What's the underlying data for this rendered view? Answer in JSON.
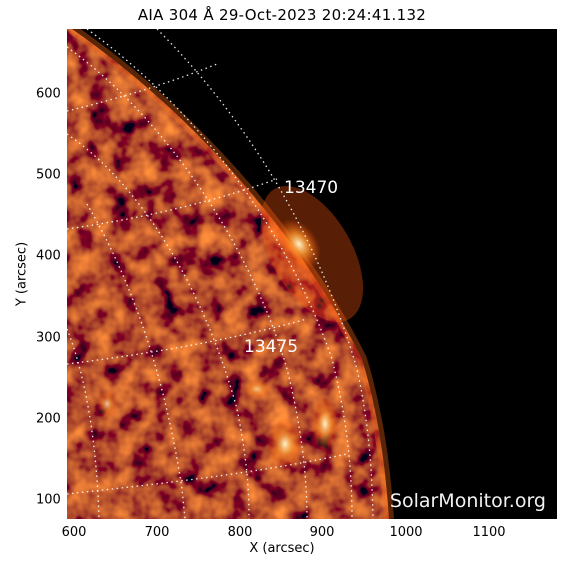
{
  "title": "AIA 304 Å 29-Oct-2023 20:24:41.132",
  "axes": {
    "xlabel": "X (arcsec)",
    "ylabel": "Y (arcsec)",
    "xticks": [
      "600",
      "700",
      "800",
      "900",
      "1000",
      "1100"
    ],
    "yticks": [
      "600",
      "500",
      "400",
      "300",
      "200",
      "100"
    ]
  },
  "regions": [
    {
      "label": "13470"
    },
    {
      "label": "13475"
    }
  ],
  "watermark": "SolarMonitor.org",
  "colors": {
    "background": "#000000",
    "disk_base": "#3a0600",
    "disk_bright": "#ff7a1a",
    "hot": "#ffe6b0",
    "grid": "#ffffff"
  }
}
